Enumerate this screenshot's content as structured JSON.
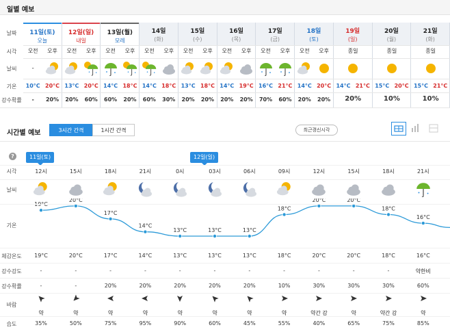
{
  "daily_section": {
    "title": "일별 예보"
  },
  "daily_labels": {
    "date": "날짜",
    "time": "시각",
    "weather": "날씨",
    "temp": "기온",
    "precip": "강수확률"
  },
  "daily": [
    {
      "day": "11일(토)",
      "sub": "오늘",
      "sub_color": "#2473c6",
      "day_color": "#2473c6",
      "style": "today",
      "ampm": [
        "오전",
        "오후"
      ],
      "icons": [
        "none",
        "sun-cloud-icon"
      ],
      "temps": [
        "10°C",
        "20°C"
      ],
      "precip": [
        "-",
        "20%"
      ]
    },
    {
      "day": "12일(일)",
      "sub": "내일",
      "sub_color": "#d62b2b",
      "day_color": "#d62b2b",
      "style": "tom",
      "ampm": [
        "오전",
        "오후"
      ],
      "icons": [
        "sun-cloud-icon",
        "sun-umbrella-icon"
      ],
      "temps": [
        "13°C",
        "20°C"
      ],
      "precip": [
        "20%",
        "60%"
      ]
    },
    {
      "day": "13일(월)",
      "sub": "모레",
      "sub_color": "#2473c6",
      "day_color": "#222",
      "style": "after",
      "ampm": [
        "오전",
        "오후"
      ],
      "icons": [
        "umbrella-icon",
        "sun-umbrella-icon"
      ],
      "temps": [
        "14°C",
        "18°C"
      ],
      "precip": [
        "60%",
        "20%"
      ]
    },
    {
      "day": "14일",
      "sub": "(화)",
      "sub_color": "#888",
      "day_color": "#222",
      "style": "",
      "ampm": [
        "오전",
        "오후"
      ],
      "icons": [
        "sun-umbrella-icon",
        "cloud-icon"
      ],
      "temps": [
        "14°C",
        "18°C"
      ],
      "precip": [
        "60%",
        "30%"
      ]
    },
    {
      "day": "15일",
      "sub": "(수)",
      "sub_color": "#888",
      "day_color": "#222",
      "style": "",
      "ampm": [
        "오전",
        "오후"
      ],
      "icons": [
        "sun-cloud-icon",
        "sun-cloud-icon"
      ],
      "temps": [
        "13°C",
        "18°C"
      ],
      "precip": [
        "20%",
        "20%"
      ]
    },
    {
      "day": "16일",
      "sub": "(목)",
      "sub_color": "#888",
      "day_color": "#222",
      "style": "",
      "ampm": [
        "오전",
        "오후"
      ],
      "icons": [
        "sun-cloud-icon",
        "cloud-icon"
      ],
      "temps": [
        "14°C",
        "19°C"
      ],
      "precip": [
        "20%",
        "20%"
      ]
    },
    {
      "day": "17일",
      "sub": "(금)",
      "sub_color": "#888",
      "day_color": "#222",
      "style": "",
      "ampm": [
        "오전",
        "오후"
      ],
      "icons": [
        "umbrella-icon",
        "umbrella-icon"
      ],
      "temps": [
        "16°C",
        "21°C"
      ],
      "precip": [
        "70%",
        "60%"
      ]
    },
    {
      "day": "18일",
      "sub": "(토)",
      "sub_color": "#2473c6",
      "day_color": "#2473c6",
      "style": "",
      "ampm": [
        "오전",
        "오후"
      ],
      "icons": [
        "sun-cloud-icon",
        "sun-icon"
      ],
      "temps": [
        "14°C",
        "20°C"
      ],
      "precip": [
        "20%",
        "20%"
      ]
    },
    {
      "day": "19일",
      "sub": "(일)",
      "sub_color": "#d62b2b",
      "day_color": "#d62b2b",
      "style": "",
      "ampm": [
        "종일"
      ],
      "icons": [
        "sun-icon"
      ],
      "temps": [
        "14°C",
        "21°C"
      ],
      "precip": [
        "20%"
      ]
    },
    {
      "day": "20일",
      "sub": "(월)",
      "sub_color": "#888",
      "day_color": "#222",
      "style": "",
      "ampm": [
        "종일"
      ],
      "icons": [
        "sun-icon"
      ],
      "temps": [
        "15°C",
        "20°C"
      ],
      "precip": [
        "10%"
      ]
    },
    {
      "day": "21일",
      "sub": "(화)",
      "sub_color": "#888",
      "day_color": "#222",
      "style": "",
      "ampm": [
        "종일"
      ],
      "icons": [
        "sun-icon"
      ],
      "temps": [
        "15°C",
        "21°C"
      ],
      "precip": [
        "10%"
      ]
    }
  ],
  "hourly_section": {
    "title": "시간별 예보",
    "btn_3h": "3시간 간격",
    "btn_1h": "1시간 간격",
    "btn_refresh": "최근갱신시각",
    "help": "?"
  },
  "hourly_labels": {
    "time": "시각",
    "weather": "날씨",
    "temp": "기온",
    "feels": "체감온도",
    "intensity": "강수강도",
    "prob": "강수확률",
    "wind": "바람",
    "humidity": "습도"
  },
  "date_tags": [
    "11일(토)",
    "12일(일)"
  ],
  "hourly": [
    {
      "time": "12시",
      "icon": "sun-cloud-icon",
      "temp": 19,
      "temp_label": "19°C",
      "feels": "19°C",
      "intensity": "-",
      "prob": "-",
      "wind_dir": "nw",
      "wind": "약",
      "humidity": "35%"
    },
    {
      "time": "15시",
      "icon": "cloud-icon",
      "temp": 20,
      "temp_label": "20°C",
      "feels": "20°C",
      "intensity": "-",
      "prob": "-",
      "wind_dir": "sw",
      "wind": "약",
      "humidity": "50%"
    },
    {
      "time": "18시",
      "icon": "sun-cloud-icon",
      "temp": 17,
      "temp_label": "17°C",
      "feels": "17°C",
      "intensity": "-",
      "prob": "20%",
      "wind_dir": "w",
      "wind": "약",
      "humidity": "75%"
    },
    {
      "time": "21시",
      "icon": "moon-cloud-icon",
      "temp": 14,
      "temp_label": "14°C",
      "feels": "14°C",
      "intensity": "-",
      "prob": "20%",
      "wind_dir": "w",
      "wind": "약",
      "humidity": "95%"
    },
    {
      "time": "0시",
      "icon": "moon-cloud-icon",
      "temp": 13,
      "temp_label": "13°C",
      "feels": "13°C",
      "intensity": "-",
      "prob": "20%",
      "wind_dir": "s",
      "wind": "약",
      "humidity": "90%"
    },
    {
      "time": "03시",
      "icon": "moon-cloud-icon",
      "temp": 13,
      "temp_label": "13°C",
      "feels": "13°C",
      "intensity": "-",
      "prob": "20%",
      "wind_dir": "nw",
      "wind": "약",
      "humidity": "60%"
    },
    {
      "time": "06시",
      "icon": "moon-cloud-icon",
      "temp": 13,
      "temp_label": "13°C",
      "feels": "13°C",
      "intensity": "-",
      "prob": "20%",
      "wind_dir": "nw",
      "wind": "약",
      "humidity": "45%"
    },
    {
      "time": "09시",
      "icon": "sun-cloud-icon",
      "temp": 18,
      "temp_label": "18°C",
      "feels": "18°C",
      "intensity": "-",
      "prob": "10%",
      "wind_dir": "e",
      "wind": "약",
      "humidity": "55%"
    },
    {
      "time": "12시",
      "icon": "cloud-icon",
      "temp": 20,
      "temp_label": "20°C",
      "feels": "20°C",
      "intensity": "-",
      "prob": "30%",
      "wind_dir": "e",
      "wind": "약간 강",
      "humidity": "40%"
    },
    {
      "time": "15시",
      "icon": "cloud-icon",
      "temp": 20,
      "temp_label": "20°C",
      "feels": "20°C",
      "intensity": "-",
      "prob": "30%",
      "wind_dir": "e",
      "wind": "약",
      "humidity": "65%"
    },
    {
      "time": "18시",
      "icon": "cloud-icon",
      "temp": 18,
      "temp_label": "18°C",
      "feels": "18°C",
      "intensity": "-",
      "prob": "30%",
      "wind_dir": "e",
      "wind": "약간 강",
      "humidity": "75%"
    },
    {
      "time": "21시",
      "icon": "umbrella-icon",
      "temp": 16,
      "temp_label": "16°C",
      "feels": "16°C",
      "intensity": "약한비",
      "prob": "60%",
      "wind_dir": "e",
      "wind": "약",
      "humidity": "85%"
    }
  ],
  "colors": {
    "accent": "#2a8de0",
    "line": "#2c9ad8",
    "sun": "#f5b400",
    "cloud": "#c9ced6",
    "umbrella": "#6cb52d",
    "red": "#d62b2b",
    "blue": "#2473c6"
  }
}
